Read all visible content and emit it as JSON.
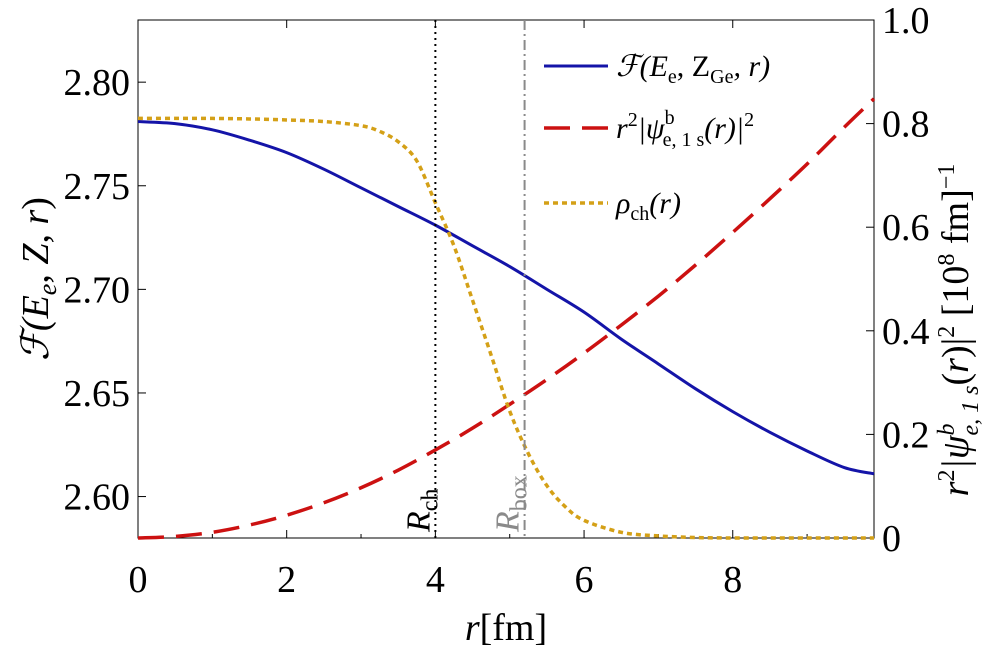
{
  "chart_data": {
    "type": "line",
    "x_axis": {
      "label": "r[fm]",
      "range": [
        0,
        9.9
      ],
      "ticks": [
        0,
        2,
        4,
        6,
        8
      ],
      "tick_labels": [
        "0",
        "2",
        "4",
        "6",
        "8"
      ]
    },
    "y_left": {
      "label": "ℱ(E_e, Z, r)",
      "range": [
        2.58,
        2.83
      ],
      "ticks": [
        2.6,
        2.65,
        2.7,
        2.75,
        2.8
      ],
      "tick_labels": [
        "2.60",
        "2.65",
        "2.70",
        "2.75",
        "2.80"
      ]
    },
    "y_right": {
      "label": "r²|ψᵇ_e,1s(r)|² [10⁸ fm]⁻¹",
      "range": [
        0,
        1.0
      ],
      "ticks": [
        0,
        0.2,
        0.4,
        0.6,
        0.8,
        1.0
      ],
      "tick_labels": [
        "0",
        "0.2",
        "0.4",
        "0.6",
        "0.8",
        "1.0"
      ]
    },
    "series": [
      {
        "name": "ℱ(E_e, Z_Ge, r)",
        "axis": "left",
        "style": "solid",
        "color": "#1414a8",
        "x": [
          0,
          0.5,
          1,
          1.5,
          2,
          2.5,
          3,
          3.5,
          4,
          4.5,
          5,
          5.5,
          6,
          6.5,
          7,
          7.5,
          8,
          8.5,
          9,
          9.5,
          9.9
        ],
        "y": [
          2.781,
          2.78,
          2.777,
          2.772,
          2.766,
          2.758,
          2.749,
          2.74,
          2.731,
          2.721,
          2.711,
          2.7,
          2.689,
          2.676,
          2.664,
          2.652,
          2.641,
          2.631,
          2.622,
          2.614,
          2.611
        ]
      },
      {
        "name": "r²|ψᵇ_e,1s(r)|²",
        "axis": "right",
        "style": "dashed",
        "color": "#cc1111",
        "x": [
          0,
          0.5,
          1,
          1.5,
          2,
          2.5,
          3,
          3.5,
          4,
          4.5,
          5,
          5.5,
          6,
          6.5,
          7,
          7.5,
          8,
          8.5,
          9,
          9.5,
          9.9
        ],
        "y": [
          0,
          0.003,
          0.011,
          0.025,
          0.044,
          0.068,
          0.097,
          0.131,
          0.17,
          0.212,
          0.258,
          0.306,
          0.357,
          0.411,
          0.467,
          0.527,
          0.59,
          0.655,
          0.722,
          0.793,
          0.848
        ]
      },
      {
        "name": "ρ_ch(r)",
        "axis": "right",
        "style": "dotted",
        "color": "#d4a017",
        "x": [
          0,
          0.5,
          1,
          1.5,
          2,
          2.5,
          3,
          3.25,
          3.5,
          3.75,
          4,
          4.25,
          4.5,
          4.75,
          5,
          5.25,
          5.5,
          5.75,
          6,
          6.5,
          7,
          7.5,
          8,
          9,
          9.9
        ],
        "y": [
          0.81,
          0.81,
          0.81,
          0.809,
          0.807,
          0.804,
          0.796,
          0.785,
          0.765,
          0.728,
          0.647,
          0.564,
          0.459,
          0.353,
          0.245,
          0.163,
          0.101,
          0.06,
          0.034,
          0.011,
          0.004,
          0.001,
          0,
          0,
          0
        ]
      }
    ],
    "vertical_markers": [
      {
        "label_main": "R",
        "label_sub": "ch",
        "x": 4.0,
        "style": "dotted",
        "color": "#000000"
      },
      {
        "label_main": "R",
        "label_sub": "box",
        "x": 5.2,
        "style": "dashdot",
        "color": "#8a8a8a"
      }
    ],
    "legend": {
      "position": "top-right",
      "entries": [
        {
          "main": "ℱ(E",
          "parts": [
            "ℱ(E",
            "e",
            ", Z",
            "Ge",
            ", r)"
          ]
        },
        {
          "main": "r",
          "parts": [
            "r",
            "2",
            "|ψ",
            "b",
            "e, 1 s",
            "(r)|",
            "2"
          ]
        },
        {
          "main": "ρ",
          "parts": [
            "ρ",
            "ch",
            "(r)"
          ]
        }
      ]
    }
  }
}
